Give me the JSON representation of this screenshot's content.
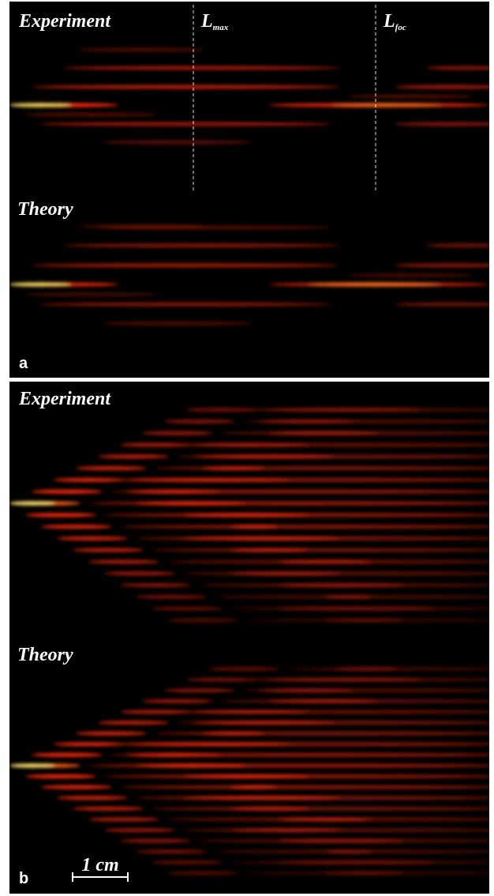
{
  "panel_a": {
    "label": "a",
    "experiment": "Experiment",
    "theory": "Theory",
    "markers": [
      {
        "symbol": "L",
        "subscript": "max"
      },
      {
        "symbol": "L",
        "subscript": "foc"
      }
    ]
  },
  "panel_b": {
    "label": "b",
    "experiment": "Experiment",
    "theory": "Theory",
    "scale_bar": "1 cm"
  }
}
